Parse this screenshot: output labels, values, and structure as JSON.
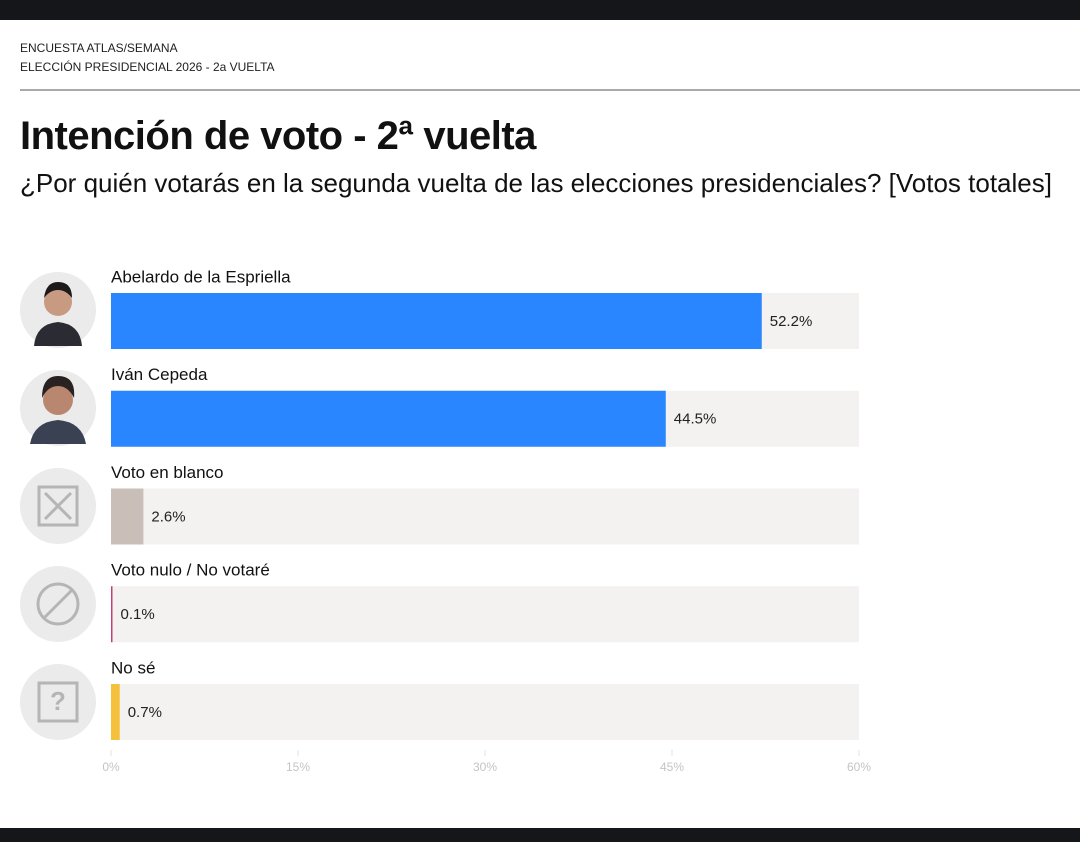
{
  "header": {
    "source": "ENCUESTA ATLAS/SEMANA",
    "election": "ELECCIÓN PRESIDENCIAL 2026 - 2a VUELTA"
  },
  "chart_data": {
    "type": "bar",
    "orientation": "horizontal",
    "title": "Intención de voto - 2ª vuelta",
    "subtitle": "¿Por quién votarás en la segunda vuelta de las elecciones presidenciales? [Votos totales]",
    "categories": [
      "Abelardo de la Espriella",
      "Iván Cepeda",
      "Voto en blanco",
      "Voto nulo / No votaré",
      "No sé"
    ],
    "values": [
      52.2,
      44.5,
      2.6,
      0.1,
      0.7
    ],
    "value_labels": [
      "52.2%",
      "44.5%",
      "2.6%",
      "0.1%",
      "0.7%"
    ],
    "colors": [
      "#2a86ff",
      "#2a86ff",
      "#c9bfb8",
      "#c0407a",
      "#f5c13a"
    ],
    "xlim": [
      0,
      60
    ],
    "xticks": [
      {
        "value": 0,
        "label": "0%"
      },
      {
        "value": 15,
        "label": "15%"
      },
      {
        "value": 30,
        "label": "30%"
      },
      {
        "value": 45,
        "label": "45%"
      },
      {
        "value": 60,
        "label": "60%"
      }
    ]
  }
}
